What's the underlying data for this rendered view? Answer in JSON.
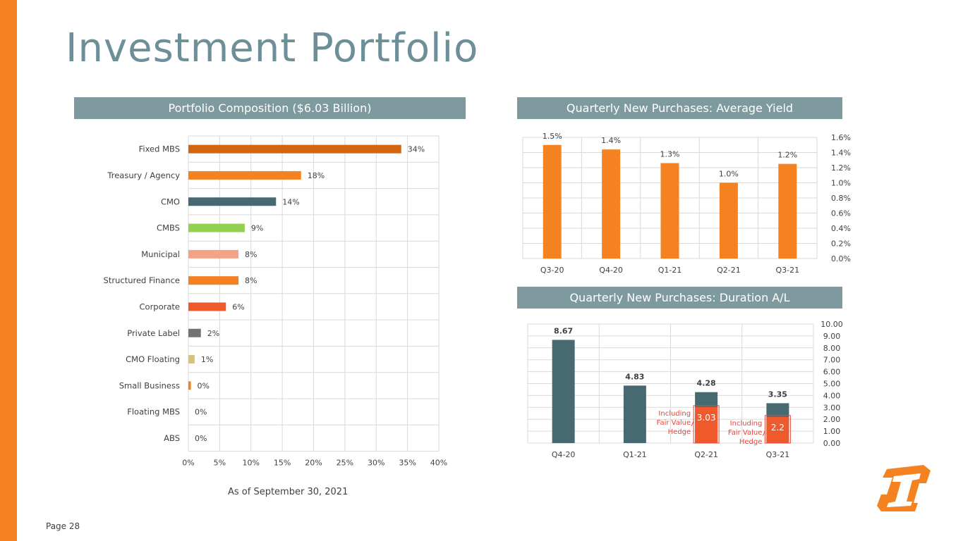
{
  "title": "Investment Portfolio",
  "footer": {
    "as_of": "As of September 30, 2021",
    "page": "Page 28"
  },
  "colors": {
    "accent": "#f58220",
    "banner": "#7f9a9f",
    "title": "#6d8f97",
    "teal_bar": "#476a72",
    "hedge_red": "#ee5a2c"
  },
  "logo_icon": "company-logo-icon",
  "chart_data": [
    {
      "type": "bar",
      "orientation": "horizontal",
      "title": "Portfolio Composition ($6.03 Billion)",
      "categories": [
        "Fixed MBS",
        "Treasury / Agency",
        "CMO",
        "CMBS",
        "Municipal",
        "Structured Finance",
        "Corporate",
        "Private Label",
        "CMO Floating",
        "Small Business",
        "Floating MBS",
        "ABS"
      ],
      "values": [
        34,
        18,
        14,
        9,
        8,
        8,
        6,
        2,
        1,
        0.4,
        0,
        0
      ],
      "data_labels": [
        "34%",
        "18%",
        "14%",
        "9%",
        "8%",
        "8%",
        "6%",
        "2%",
        "1%",
        "0%",
        "0%",
        "0%"
      ],
      "colors": [
        "#d2650f",
        "#f58220",
        "#476a72",
        "#92d050",
        "#f4a389",
        "#f58220",
        "#ee5a2c",
        "#737373",
        "#d8c27a",
        "#f58220",
        "#f58220",
        "#f58220"
      ],
      "xticks": [
        "0%",
        "5%",
        "10%",
        "15%",
        "20%",
        "25%",
        "30%",
        "35%",
        "40%"
      ],
      "xlim": [
        0,
        40
      ],
      "grid": true
    },
    {
      "type": "bar",
      "title": "Quarterly New Purchases:  Average Yield",
      "categories": [
        "Q3-20",
        "Q4-20",
        "Q1-21",
        "Q2-21",
        "Q3-21"
      ],
      "values": [
        1.5,
        1.44,
        1.26,
        1.0,
        1.25
      ],
      "data_labels": [
        "1.5%",
        "1.4%",
        "1.3%",
        "1.0%",
        "1.2%"
      ],
      "yticks": [
        "0.0%",
        "0.2%",
        "0.4%",
        "0.6%",
        "0.8%",
        "1.0%",
        "1.2%",
        "1.4%",
        "1.6%"
      ],
      "ylim": [
        0,
        1.6
      ],
      "y_axis_side": "right",
      "color": "#f58220",
      "grid": true
    },
    {
      "type": "bar",
      "title": "Quarterly New Purchases:    Duration A/L",
      "categories": [
        "Q4-20",
        "Q1-21",
        "Q2-21",
        "Q3-21"
      ],
      "values": [
        8.67,
        4.83,
        4.28,
        3.35
      ],
      "data_labels": [
        "8.67",
        "4.83",
        "4.28",
        "3.35"
      ],
      "hedge_values": [
        null,
        null,
        3.03,
        2.2
      ],
      "hedge_labels": [
        "",
        "",
        "3.03",
        "2.2"
      ],
      "annotations": [
        "Including Fair Value Hedge",
        "Including Fair Value Hedge"
      ],
      "yticks": [
        "0.00",
        "1.00",
        "2.00",
        "3.00",
        "4.00",
        "5.00",
        "6.00",
        "7.00",
        "8.00",
        "9.00",
        "10.00"
      ],
      "ylim": [
        0,
        10
      ],
      "y_axis_side": "right",
      "color": "#476a72",
      "hedge_color": "#ee5a2c",
      "grid": true
    }
  ]
}
